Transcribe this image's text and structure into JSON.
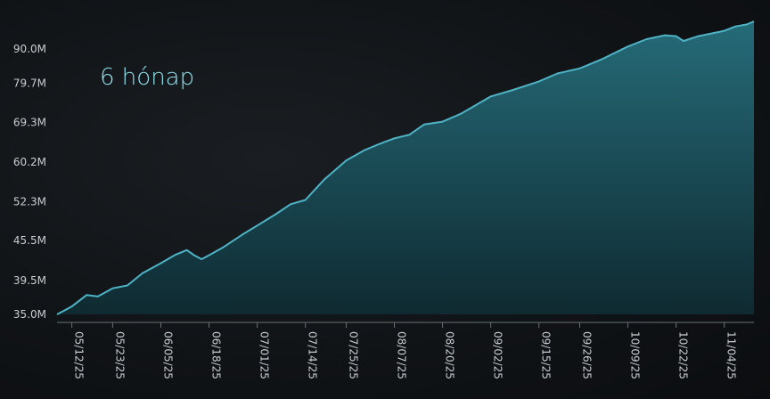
{
  "colors": {
    "line": "#4fb3c6",
    "fill_top": "#256b78",
    "fill_bottom": "#0f2a31",
    "axis": "#6a7075",
    "period_label": "#8fe0ec"
  },
  "period_label": "6 hónap",
  "chart_data": {
    "type": "area",
    "title": "",
    "xlabel": "",
    "ylabel": "",
    "ylim": [
      35.0,
      97.0
    ],
    "yscale": "log",
    "grid": false,
    "y_tick_labels": [
      "35.0M",
      "39.5M",
      "45.5M",
      "52.3M",
      "60.2M",
      "69.3M",
      "79.7M",
      "90.0M"
    ],
    "y_tick_values": [
      35.0,
      39.5,
      45.5,
      52.3,
      60.2,
      69.3,
      79.7,
      90.0
    ],
    "x_tick_labels": [
      "05/12/25",
      "05/23/25",
      "06/05/25",
      "06/18/25",
      "07/01/25",
      "07/14/25",
      "07/25/25",
      "08/07/25",
      "08/20/25",
      "09/02/25",
      "09/15/25",
      "09/26/25",
      "10/09/25",
      "10/22/25",
      "11/04/25"
    ],
    "x_range": [
      "05/08/25",
      "11/12/25"
    ],
    "series": [
      {
        "points": [
          [
            "05/08/25",
            35.0
          ],
          [
            "05/12/25",
            36.0
          ],
          [
            "05/16/25",
            37.5
          ],
          [
            "05/19/25",
            37.3
          ],
          [
            "05/23/25",
            38.4
          ],
          [
            "05/27/25",
            38.8
          ],
          [
            "05/31/25",
            40.5
          ],
          [
            "06/05/25",
            42.0
          ],
          [
            "06/09/25",
            43.3
          ],
          [
            "06/12/25",
            44.0
          ],
          [
            "06/14/25",
            43.2
          ],
          [
            "06/16/25",
            42.6
          ],
          [
            "06/18/25",
            43.2
          ],
          [
            "06/22/25",
            44.5
          ],
          [
            "06/27/25",
            46.5
          ],
          [
            "07/01/25",
            48.0
          ],
          [
            "07/06/25",
            50.0
          ],
          [
            "07/10/25",
            51.8
          ],
          [
            "07/14/25",
            52.6
          ],
          [
            "07/19/25",
            56.5
          ],
          [
            "07/25/25",
            60.5
          ],
          [
            "07/30/25",
            62.8
          ],
          [
            "08/03/25",
            64.2
          ],
          [
            "08/07/25",
            65.5
          ],
          [
            "08/11/25",
            66.3
          ],
          [
            "08/15/25",
            68.8
          ],
          [
            "08/20/25",
            69.5
          ],
          [
            "08/25/25",
            71.5
          ],
          [
            "09/02/25",
            76.0
          ],
          [
            "09/08/25",
            77.8
          ],
          [
            "09/15/25",
            80.2
          ],
          [
            "09/20/25",
            82.5
          ],
          [
            "09/26/25",
            84.0
          ],
          [
            "10/02/25",
            86.8
          ],
          [
            "10/09/25",
            90.8
          ],
          [
            "10/14/25",
            93.2
          ],
          [
            "10/19/25",
            94.5
          ],
          [
            "10/22/25",
            94.2
          ],
          [
            "10/24/25",
            92.6
          ],
          [
            "10/28/25",
            94.2
          ],
          [
            "11/04/25",
            96.0
          ],
          [
            "11/07/25",
            97.5
          ],
          [
            "11/10/25",
            98.2
          ],
          [
            "11/12/25",
            99.3
          ]
        ]
      }
    ]
  }
}
